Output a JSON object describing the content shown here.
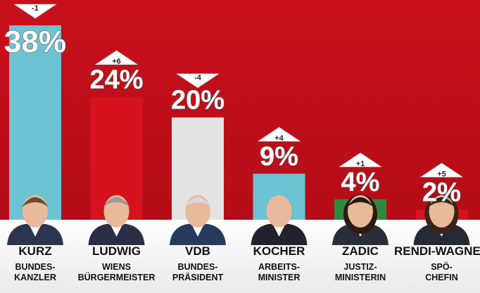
{
  "chart_data": {
    "type": "bar",
    "title": "",
    "xlabel": "",
    "ylabel": "",
    "ylim": [
      0,
      40
    ],
    "categories": [
      "KURZ",
      "LUDWIG",
      "VDB",
      "KOCHER",
      "ZADIC",
      "RENDI-WAGNER"
    ],
    "roles": [
      [
        "BUNDES-",
        "KANZLER"
      ],
      [
        "WIENS",
        "BÜRGERMEISTER"
      ],
      [
        "BUNDES-",
        "PRÄSIDENT"
      ],
      [
        "ARBEITS-",
        "MINISTER"
      ],
      [
        "JUSTIZ-",
        "MINISTERIN"
      ],
      [
        "SPÖ-",
        "CHEFIN"
      ]
    ],
    "values": [
      38,
      24,
      20,
      9,
      4,
      2
    ],
    "value_labels": [
      "38%",
      "24%",
      "20%",
      "9%",
      "4%",
      "2%"
    ],
    "changes": [
      "-1",
      "+6",
      "-4",
      "+4",
      "+1",
      "+5"
    ],
    "change_direction": [
      "down",
      "up",
      "down",
      "up",
      "up",
      "up"
    ],
    "colors": [
      "#6cc3d3",
      "#d5121e",
      "#e3e3e3",
      "#6cc3d3",
      "#2e8b3e",
      "#d5121e"
    ],
    "background": "#c8101c",
    "footer_background": "#ffffff"
  }
}
